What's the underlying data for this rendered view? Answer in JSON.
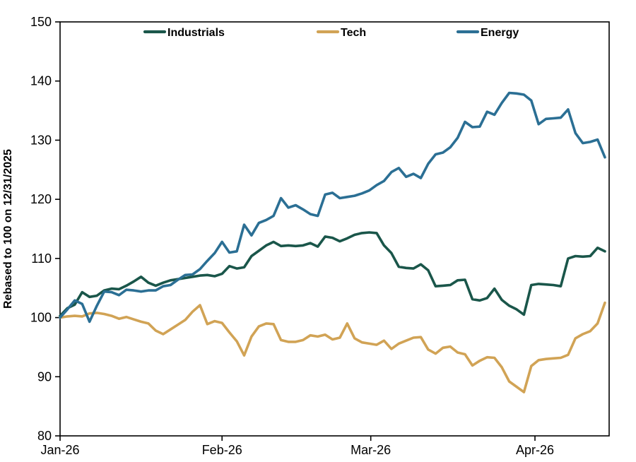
{
  "figure": {
    "background": "#ffffff",
    "axis_color": "#000000",
    "text_color": "#000000"
  },
  "chart_data": {
    "type": "line",
    "title": "",
    "xlabel": "",
    "ylabel": "Rebased to 100 on 12/31/2025",
    "ylim": [
      80,
      150
    ],
    "y_ticks": [
      150,
      140,
      130,
      120,
      110,
      100,
      90,
      80
    ],
    "x_ticks": [
      {
        "index": 0,
        "label": "Jan-26"
      },
      {
        "index": 22,
        "label": "Feb-26"
      },
      {
        "index": 42.2,
        "label": "Mar-26"
      },
      {
        "index": 64.5,
        "label": "Apr-26"
      }
    ],
    "grid": false,
    "legend_position": "top-inside",
    "n_points": 75,
    "series": [
      {
        "name": "Industrials",
        "color": "#1a564a",
        "values": [
          100.3,
          101.6,
          102.2,
          104.3,
          103.5,
          103.7,
          104.6,
          104.9,
          104.8,
          105.4,
          106.1,
          106.9,
          105.9,
          105.4,
          105.9,
          106.3,
          106.5,
          106.7,
          106.9,
          107.1,
          107.2,
          107.0,
          107.4,
          108.7,
          108.3,
          108.5,
          110.4,
          111.3,
          112.2,
          112.8,
          112.1,
          112.2,
          112.1,
          112.2,
          112.6,
          112.0,
          113.7,
          113.5,
          112.9,
          113.4,
          114.0,
          114.3,
          114.4,
          114.3,
          112.2,
          110.9,
          108.6,
          108.4,
          108.3,
          109.0,
          108.0,
          105.3,
          105.4,
          105.5,
          106.3,
          106.4,
          103.1,
          102.9,
          103.3,
          104.9,
          103.0,
          102.0,
          101.4,
          100.5,
          105.5,
          105.7,
          105.6,
          105.5,
          105.3,
          110.0,
          110.4,
          110.3,
          110.4,
          111.8,
          111.2
        ]
      },
      {
        "name": "Tech",
        "color": "#d1a355",
        "values": [
          100.0,
          100.2,
          100.3,
          100.2,
          100.7,
          100.8,
          100.6,
          100.3,
          99.8,
          100.1,
          99.7,
          99.3,
          99.0,
          97.8,
          97.2,
          98.0,
          98.8,
          99.6,
          101.0,
          102.1,
          98.9,
          99.4,
          99.1,
          97.5,
          96.0,
          93.6,
          96.8,
          98.5,
          99.0,
          98.9,
          96.2,
          95.9,
          95.9,
          96.2,
          97.0,
          96.8,
          97.1,
          96.3,
          96.6,
          99.0,
          96.5,
          95.8,
          95.6,
          95.4,
          96.1,
          94.7,
          95.6,
          96.1,
          96.6,
          96.7,
          94.6,
          93.9,
          94.9,
          95.1,
          94.1,
          93.8,
          91.9,
          92.7,
          93.3,
          93.2,
          91.6,
          89.2,
          88.3,
          87.4,
          91.8,
          92.8,
          93.0,
          93.1,
          93.2,
          93.7,
          96.5,
          97.2,
          97.7,
          99.0,
          102.5
        ]
      },
      {
        "name": "Energy",
        "color": "#2b6f94",
        "values": [
          100.0,
          101.4,
          102.9,
          102.3,
          99.3,
          102.0,
          104.4,
          104.3,
          103.8,
          104.7,
          104.6,
          104.4,
          104.6,
          104.6,
          105.3,
          105.5,
          106.4,
          107.2,
          107.3,
          108.2,
          109.6,
          110.9,
          112.8,
          111.0,
          111.2,
          115.7,
          113.9,
          116.0,
          116.5,
          117.2,
          120.2,
          118.6,
          119.0,
          118.3,
          117.5,
          117.2,
          120.8,
          121.1,
          120.2,
          120.4,
          120.6,
          121.0,
          121.5,
          122.4,
          123.1,
          124.6,
          125.3,
          123.8,
          124.3,
          123.6,
          126.0,
          127.6,
          127.9,
          128.8,
          130.4,
          133.1,
          132.2,
          132.3,
          134.8,
          134.3,
          136.3,
          138.0,
          137.9,
          137.7,
          136.7,
          132.7,
          133.6,
          133.7,
          133.8,
          135.2,
          131.2,
          129.5,
          129.7,
          130.1,
          127.1
        ]
      }
    ]
  }
}
